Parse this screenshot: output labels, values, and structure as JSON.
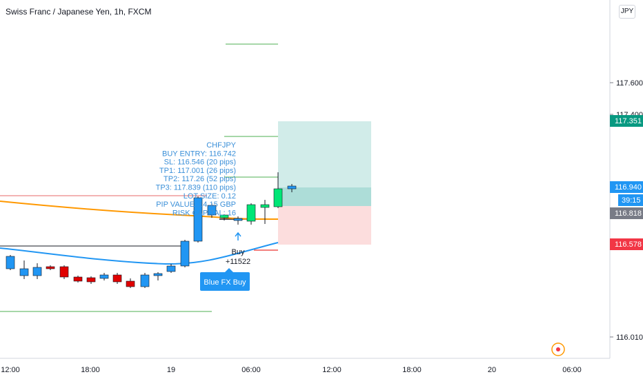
{
  "header": {
    "title": "Swiss Franc / Japanese Yen, 1h, FXCM",
    "currency": "JPY"
  },
  "price_axis": {
    "ticks": [
      "117.600",
      "117.400",
      "116.010"
    ],
    "tags": [
      {
        "label": "117.351",
        "color": "#089981"
      },
      {
        "label": "116.940",
        "color": "#2196f3"
      },
      {
        "label": "39:15",
        "color": "#2196f3"
      },
      {
        "label": "116.818",
        "color": "#787b86"
      },
      {
        "label": "116.578",
        "color": "#f23645"
      }
    ]
  },
  "time_axis": {
    "ticks": [
      "12:00",
      "18:00",
      "19",
      "06:00",
      "12:00",
      "18:00",
      "20",
      "06:00"
    ]
  },
  "trade_info": {
    "lines": [
      "CHFJPY",
      "BUY ENTRY: 116.742",
      "SL: 116.546 (20 pips)",
      "TP1: 117.001 (26 pips)",
      "TP2: 117.26 (52 pips)",
      "TP3: 117.839 (110 pips)",
      "LOT SIZE: 0.12",
      "PIP VALUE: 14.15 GBP",
      "RISK CAPITAL: 16"
    ]
  },
  "buy_signal": {
    "label": "Buy",
    "value": "+11522"
  },
  "indicator_button": {
    "label": "Blue FX Buy"
  },
  "colors": {
    "up": "#2196f3",
    "down": "#e00000",
    "signal_up": "#00e676",
    "ema_orange": "#ff9800",
    "ema_blue": "#2196f3",
    "target_green": "#4caf50",
    "stop_red": "#ef5350",
    "profit_zone": "#b2dfdb",
    "loss_zone": "#fcd9d9"
  },
  "icons": {
    "alert": "alert-clock-icon",
    "arrow": "up-arrow-icon"
  }
}
